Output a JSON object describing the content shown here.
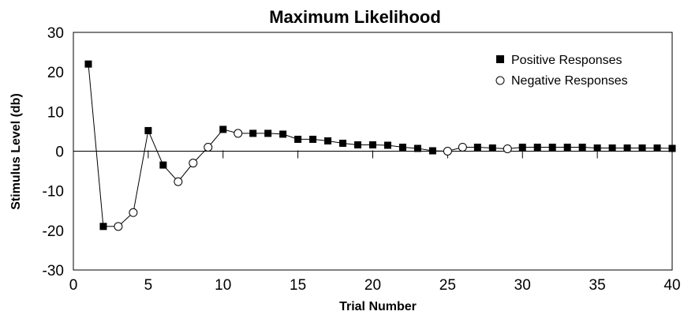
{
  "chart_data": {
    "type": "scatter",
    "title": "Maximum Likelihood",
    "xlabel": "Trial Number",
    "ylabel": "Stimulus Level (db)",
    "xlim": [
      0,
      40
    ],
    "ylim": [
      -30,
      30
    ],
    "x_ticks": [
      0,
      5,
      10,
      15,
      20,
      25,
      30,
      35,
      40
    ],
    "y_ticks": [
      30,
      20,
      10,
      0,
      -10,
      -20,
      -30
    ],
    "grid": false,
    "connected_line": true,
    "legend_position": "top-right",
    "legend": {
      "positive": "Positive Responses",
      "negative": "Negative Responses"
    },
    "points": [
      {
        "x": 1,
        "y": 22,
        "response": "positive"
      },
      {
        "x": 2,
        "y": -19,
        "response": "positive"
      },
      {
        "x": 3,
        "y": -19,
        "response": "negative"
      },
      {
        "x": 4,
        "y": -15.5,
        "response": "negative"
      },
      {
        "x": 5,
        "y": 5.2,
        "response": "positive"
      },
      {
        "x": 6,
        "y": -3.5,
        "response": "positive"
      },
      {
        "x": 7,
        "y": -7.7,
        "response": "negative"
      },
      {
        "x": 8,
        "y": -3,
        "response": "negative"
      },
      {
        "x": 9,
        "y": 1,
        "response": "negative"
      },
      {
        "x": 10,
        "y": 5.5,
        "response": "positive"
      },
      {
        "x": 11,
        "y": 4.5,
        "response": "negative"
      },
      {
        "x": 12,
        "y": 4.5,
        "response": "positive"
      },
      {
        "x": 13,
        "y": 4.5,
        "response": "positive"
      },
      {
        "x": 14,
        "y": 4.3,
        "response": "positive"
      },
      {
        "x": 15,
        "y": 3,
        "response": "positive"
      },
      {
        "x": 16,
        "y": 3,
        "response": "positive"
      },
      {
        "x": 17,
        "y": 2.6,
        "response": "positive"
      },
      {
        "x": 18,
        "y": 2,
        "response": "positive"
      },
      {
        "x": 19,
        "y": 1.6,
        "response": "positive"
      },
      {
        "x": 20,
        "y": 1.6,
        "response": "positive"
      },
      {
        "x": 21,
        "y": 1.5,
        "response": "positive"
      },
      {
        "x": 22,
        "y": 1,
        "response": "positive"
      },
      {
        "x": 23,
        "y": 0.7,
        "response": "positive"
      },
      {
        "x": 24,
        "y": 0.1,
        "response": "positive"
      },
      {
        "x": 25,
        "y": 0,
        "response": "negative"
      },
      {
        "x": 26,
        "y": 1,
        "response": "negative"
      },
      {
        "x": 27,
        "y": 1,
        "response": "positive"
      },
      {
        "x": 28,
        "y": 0.8,
        "response": "positive"
      },
      {
        "x": 29,
        "y": 0.6,
        "response": "negative"
      },
      {
        "x": 30,
        "y": 1,
        "response": "positive"
      },
      {
        "x": 31,
        "y": 1,
        "response": "positive"
      },
      {
        "x": 32,
        "y": 1,
        "response": "positive"
      },
      {
        "x": 33,
        "y": 1,
        "response": "positive"
      },
      {
        "x": 34,
        "y": 1,
        "response": "positive"
      },
      {
        "x": 35,
        "y": 0.8,
        "response": "positive"
      },
      {
        "x": 36,
        "y": 0.8,
        "response": "positive"
      },
      {
        "x": 37,
        "y": 0.8,
        "response": "positive"
      },
      {
        "x": 38,
        "y": 0.8,
        "response": "positive"
      },
      {
        "x": 39,
        "y": 0.8,
        "response": "positive"
      },
      {
        "x": 40,
        "y": 0.7,
        "response": "positive"
      }
    ]
  }
}
